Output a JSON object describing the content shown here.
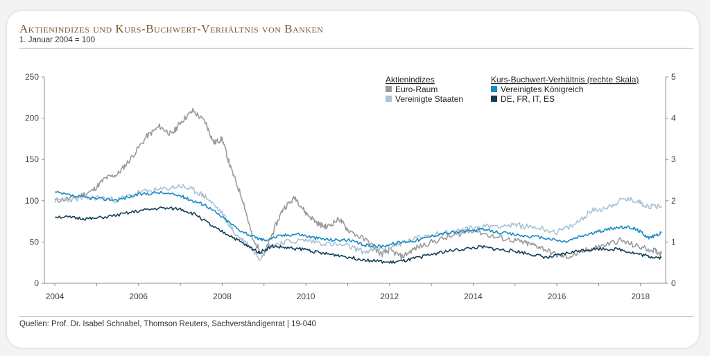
{
  "header": {
    "title": "Aktienindizes und Kurs-Buchwert-Verhältnis von Banken",
    "subtitle": "1. Januar 2004 = 100"
  },
  "footer": {
    "source": "Quellen: Prof. Dr. Isabel Schnabel, Thomson Reuters, Sachverständigenrat | 19-040"
  },
  "chart_data": {
    "type": "line",
    "title": "Aktienindizes und Kurs-Buchwert-Verhältnis von Banken",
    "subtitle": "1. Januar 2004 = 100",
    "x_ticks": [
      "2004",
      "2006",
      "2008",
      "2010",
      "2012",
      "2014",
      "2016",
      "2018"
    ],
    "x_range": [
      2003.75,
      2018.6
    ],
    "y_left": {
      "range": [
        0,
        250
      ],
      "ticks": [
        0,
        50,
        100,
        150,
        200,
        250
      ]
    },
    "y_right": {
      "label": "rechte Skala",
      "range": [
        0,
        5
      ],
      "ticks": [
        0,
        1,
        2,
        3,
        4,
        5
      ]
    },
    "grid": false,
    "legend": {
      "placement": "top-right",
      "group_left_title": "Aktienindizes",
      "group_right_title": "Kurs-Buchwert-Verhältnis (rechte Skala)"
    },
    "series": [
      {
        "name": "Euro-Raum",
        "axis": "left",
        "color": "#9a9a9a",
        "points": [
          [
            2004.0,
            100
          ],
          [
            2004.5,
            104
          ],
          [
            2004.9,
            112
          ],
          [
            2005.2,
            127
          ],
          [
            2005.5,
            132
          ],
          [
            2005.8,
            150
          ],
          [
            2006.2,
            178
          ],
          [
            2006.5,
            190
          ],
          [
            2006.8,
            180
          ],
          [
            2007.0,
            195
          ],
          [
            2007.3,
            209
          ],
          [
            2007.6,
            195
          ],
          [
            2007.8,
            170
          ],
          [
            2008.0,
            175
          ],
          [
            2008.2,
            140
          ],
          [
            2008.5,
            100
          ],
          [
            2008.75,
            50
          ],
          [
            2009.0,
            35
          ],
          [
            2009.2,
            60
          ],
          [
            2009.45,
            90
          ],
          [
            2009.75,
            104
          ],
          [
            2010.0,
            85
          ],
          [
            2010.3,
            72
          ],
          [
            2010.5,
            68
          ],
          [
            2010.8,
            78
          ],
          [
            2011.0,
            65
          ],
          [
            2011.5,
            50
          ],
          [
            2011.8,
            35
          ],
          [
            2012.0,
            40
          ],
          [
            2012.3,
            32
          ],
          [
            2012.6,
            42
          ],
          [
            2013.0,
            50
          ],
          [
            2013.5,
            57
          ],
          [
            2014.0,
            65
          ],
          [
            2014.5,
            56
          ],
          [
            2015.0,
            52
          ],
          [
            2015.3,
            48
          ],
          [
            2015.6,
            44
          ],
          [
            2016.0,
            34
          ],
          [
            2016.3,
            32
          ],
          [
            2016.7,
            40
          ],
          [
            2017.0,
            44
          ],
          [
            2017.5,
            52
          ],
          [
            2017.9,
            45
          ],
          [
            2018.3,
            40
          ],
          [
            2018.5,
            36
          ]
        ]
      },
      {
        "name": "Vereinigte Staaten",
        "axis": "left",
        "color": "#a9c2d6",
        "points": [
          [
            2004.0,
            100
          ],
          [
            2004.5,
            102
          ],
          [
            2005.0,
            104
          ],
          [
            2005.5,
            101
          ],
          [
            2006.0,
            110
          ],
          [
            2006.5,
            113
          ],
          [
            2007.0,
            118
          ],
          [
            2007.3,
            113
          ],
          [
            2007.6,
            105
          ],
          [
            2008.0,
            85
          ],
          [
            2008.3,
            60
          ],
          [
            2008.6,
            48
          ],
          [
            2008.9,
            30
          ],
          [
            2009.1,
            45
          ],
          [
            2009.5,
            50
          ],
          [
            2010.0,
            52
          ],
          [
            2010.5,
            48
          ],
          [
            2011.0,
            45
          ],
          [
            2011.4,
            38
          ],
          [
            2011.8,
            42
          ],
          [
            2012.2,
            47
          ],
          [
            2012.5,
            52
          ],
          [
            2013.0,
            60
          ],
          [
            2013.5,
            62
          ],
          [
            2014.0,
            67
          ],
          [
            2014.5,
            70
          ],
          [
            2015.0,
            70
          ],
          [
            2015.5,
            68
          ],
          [
            2016.0,
            62
          ],
          [
            2016.4,
            70
          ],
          [
            2016.8,
            87
          ],
          [
            2017.2,
            92
          ],
          [
            2017.6,
            102
          ],
          [
            2017.9,
            100
          ],
          [
            2018.2,
            93
          ],
          [
            2018.5,
            94
          ]
        ]
      },
      {
        "name": "Vereinigtes Königreich",
        "axis": "right",
        "color": "#1a8bc2",
        "points": [
          [
            2004.0,
            2.2
          ],
          [
            2004.5,
            2.1
          ],
          [
            2005.0,
            2.05
          ],
          [
            2005.5,
            2.02
          ],
          [
            2006.0,
            2.15
          ],
          [
            2006.5,
            2.2
          ],
          [
            2007.0,
            2.12
          ],
          [
            2007.3,
            2.0
          ],
          [
            2007.6,
            1.9
          ],
          [
            2008.0,
            1.6
          ],
          [
            2008.4,
            1.3
          ],
          [
            2008.8,
            1.1
          ],
          [
            2009.0,
            1.05
          ],
          [
            2009.4,
            1.15
          ],
          [
            2009.8,
            1.2
          ],
          [
            2010.2,
            1.1
          ],
          [
            2010.6,
            1.05
          ],
          [
            2011.0,
            1.05
          ],
          [
            2011.4,
            0.92
          ],
          [
            2011.8,
            0.9
          ],
          [
            2012.3,
            1.0
          ],
          [
            2012.7,
            1.05
          ],
          [
            2013.2,
            1.2
          ],
          [
            2013.7,
            1.25
          ],
          [
            2014.2,
            1.3
          ],
          [
            2014.7,
            1.22
          ],
          [
            2015.2,
            1.15
          ],
          [
            2015.7,
            1.1
          ],
          [
            2016.2,
            1.0
          ],
          [
            2016.6,
            1.15
          ],
          [
            2017.0,
            1.25
          ],
          [
            2017.4,
            1.35
          ],
          [
            2017.8,
            1.35
          ],
          [
            2018.0,
            1.25
          ],
          [
            2018.2,
            1.1
          ],
          [
            2018.5,
            1.22
          ]
        ]
      },
      {
        "name": "DE, FR, IT, ES",
        "axis": "right",
        "color": "#123d57",
        "points": [
          [
            2004.0,
            1.62
          ],
          [
            2004.5,
            1.58
          ],
          [
            2004.9,
            1.56
          ],
          [
            2005.5,
            1.65
          ],
          [
            2006.0,
            1.75
          ],
          [
            2006.5,
            1.82
          ],
          [
            2007.0,
            1.8
          ],
          [
            2007.4,
            1.65
          ],
          [
            2007.8,
            1.35
          ],
          [
            2008.2,
            1.15
          ],
          [
            2008.6,
            0.9
          ],
          [
            2008.9,
            0.75
          ],
          [
            2009.2,
            0.9
          ],
          [
            2009.6,
            0.85
          ],
          [
            2010.0,
            0.82
          ],
          [
            2010.4,
            0.72
          ],
          [
            2010.8,
            0.68
          ],
          [
            2011.2,
            0.6
          ],
          [
            2011.6,
            0.55
          ],
          [
            2012.0,
            0.5
          ],
          [
            2012.4,
            0.55
          ],
          [
            2012.8,
            0.65
          ],
          [
            2013.2,
            0.75
          ],
          [
            2013.7,
            0.82
          ],
          [
            2014.2,
            0.88
          ],
          [
            2014.6,
            0.82
          ],
          [
            2015.0,
            0.78
          ],
          [
            2015.4,
            0.7
          ],
          [
            2015.8,
            0.62
          ],
          [
            2016.2,
            0.72
          ],
          [
            2016.6,
            0.8
          ],
          [
            2017.0,
            0.84
          ],
          [
            2017.5,
            0.82
          ],
          [
            2017.9,
            0.72
          ],
          [
            2018.2,
            0.65
          ],
          [
            2018.5,
            0.62
          ]
        ]
      }
    ]
  }
}
